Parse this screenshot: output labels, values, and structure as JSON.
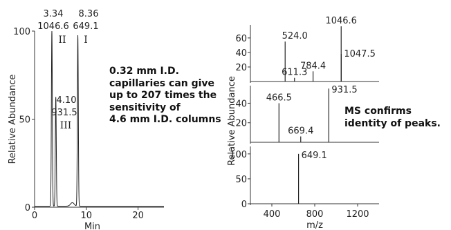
{
  "chart_data": [
    {
      "type": "line",
      "name_id": "chromatogram",
      "xlabel": "Min",
      "ylabel": "Relative Abundance",
      "xlim": [
        0,
        25
      ],
      "ylim": [
        0,
        100
      ],
      "xticks": [
        0,
        10,
        20
      ],
      "yticks": [
        0,
        50,
        100
      ],
      "peaks": [
        {
          "rt": 3.34,
          "height": 100,
          "mz_label": "1046.6",
          "rt_label": "3.34",
          "roman": "II"
        },
        {
          "rt": 4.1,
          "height": 62,
          "mz_label": "931.5",
          "rt_label": "4.10",
          "roman": "III"
        },
        {
          "rt": 8.36,
          "height": 97,
          "mz_label": "649.1",
          "rt_label": "8.36",
          "roman": "I"
        }
      ]
    },
    {
      "type": "bar",
      "name_id": "mass-spectra",
      "xlabel": "m/z",
      "ylabel": "Relative Abundance",
      "xlim": [
        200,
        1400
      ],
      "xticks": [
        400,
        800,
        1200
      ],
      "panels": [
        {
          "yticks": [
            20,
            40,
            60
          ],
          "ylim": [
            0,
            78
          ],
          "peaks": [
            {
              "mz": 524.0,
              "intensity": 55,
              "label": "524.0"
            },
            {
              "mz": 611.3,
              "intensity": 5,
              "label": "611.3"
            },
            {
              "mz": 784.4,
              "intensity": 14,
              "label": "784.4"
            },
            {
              "mz": 1046.6,
              "intensity": 76,
              "label": "1046.6"
            },
            {
              "mz": 1047.5,
              "intensity": 38,
              "label": "1047.5"
            }
          ]
        },
        {
          "yticks": [
            20,
            40
          ],
          "ylim": [
            0,
            58
          ],
          "peaks": [
            {
              "mz": 466.5,
              "intensity": 40,
              "label": "466.5"
            },
            {
              "mz": 669.4,
              "intensity": 6,
              "label": "669.4"
            },
            {
              "mz": 931.5,
              "intensity": 55,
              "label": "931.5"
            }
          ]
        },
        {
          "yticks": [
            0,
            50,
            100
          ],
          "ylim": [
            0,
            115
          ],
          "peaks": [
            {
              "mz": 649.1,
              "intensity": 100,
              "label": "649.1"
            }
          ]
        }
      ]
    }
  ],
  "notes": {
    "sensitivity": [
      "0.32 mm I.D.",
      "capillaries can give",
      "up to 207 times the",
      "sensitivity of",
      "4.6 mm I.D. columns"
    ],
    "ms_confirm": [
      "MS confirms",
      "identity of peaks."
    ]
  }
}
